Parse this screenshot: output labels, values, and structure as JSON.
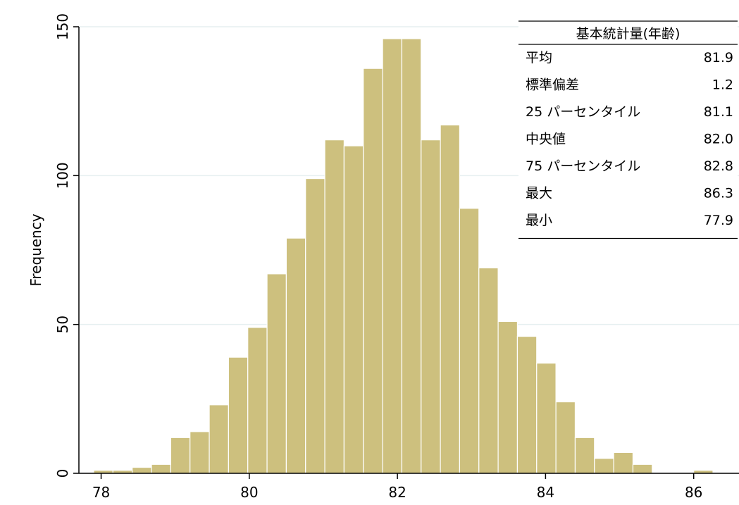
{
  "chart_data": {
    "type": "bar",
    "title": "",
    "xlabel": "",
    "ylabel": "Frequency",
    "xlim": [
      77.7,
      86.45
    ],
    "ylim": [
      0,
      150
    ],
    "xticks": [
      78,
      80,
      82,
      84,
      86
    ],
    "yticks": [
      0,
      50,
      100,
      150
    ],
    "grid": true,
    "bin_width": 0.26,
    "bins": [
      {
        "x0": 77.9,
        "x1": 78.16,
        "value": 1
      },
      {
        "x0": 78.16,
        "x1": 78.42,
        "value": 1
      },
      {
        "x0": 78.42,
        "x1": 78.68,
        "value": 2
      },
      {
        "x0": 78.68,
        "x1": 78.94,
        "value": 3
      },
      {
        "x0": 78.94,
        "x1": 79.2,
        "value": 12
      },
      {
        "x0": 79.2,
        "x1": 79.46,
        "value": 14
      },
      {
        "x0": 79.46,
        "x1": 79.72,
        "value": 23
      },
      {
        "x0": 79.72,
        "x1": 79.98,
        "value": 39
      },
      {
        "x0": 79.98,
        "x1": 80.24,
        "value": 49
      },
      {
        "x0": 80.24,
        "x1": 80.5,
        "value": 67
      },
      {
        "x0": 80.5,
        "x1": 80.76,
        "value": 79
      },
      {
        "x0": 80.76,
        "x1": 81.02,
        "value": 99
      },
      {
        "x0": 81.02,
        "x1": 81.28,
        "value": 112
      },
      {
        "x0": 81.28,
        "x1": 81.54,
        "value": 110
      },
      {
        "x0": 81.54,
        "x1": 81.8,
        "value": 136
      },
      {
        "x0": 81.8,
        "x1": 82.06,
        "value": 146
      },
      {
        "x0": 82.06,
        "x1": 82.32,
        "value": 146
      },
      {
        "x0": 82.32,
        "x1": 82.58,
        "value": 112
      },
      {
        "x0": 82.58,
        "x1": 82.84,
        "value": 117
      },
      {
        "x0": 82.84,
        "x1": 83.1,
        "value": 89
      },
      {
        "x0": 83.1,
        "x1": 83.36,
        "value": 69
      },
      {
        "x0": 83.36,
        "x1": 83.62,
        "value": 51
      },
      {
        "x0": 83.62,
        "x1": 83.88,
        "value": 46
      },
      {
        "x0": 83.88,
        "x1": 84.14,
        "value": 37
      },
      {
        "x0": 84.14,
        "x1": 84.4,
        "value": 24
      },
      {
        "x0": 84.4,
        "x1": 84.66,
        "value": 12
      },
      {
        "x0": 84.66,
        "x1": 84.92,
        "value": 5
      },
      {
        "x0": 84.92,
        "x1": 85.18,
        "value": 7
      },
      {
        "x0": 85.18,
        "x1": 85.44,
        "value": 3
      },
      {
        "x0": 86.0,
        "x1": 86.26,
        "value": 1
      }
    ],
    "colors": {
      "bar_fill": "#cdc07e",
      "bar_stroke": "#ffffff",
      "grid": "#e6eff0",
      "axis": "#000000"
    },
    "stats_table": {
      "title": "基本統計量(年齢)",
      "rows": [
        {
          "label": "平均",
          "value": "81.9"
        },
        {
          "label": "標準偏差",
          "value": "1.2"
        },
        {
          "label": "25 パーセンタイル",
          "value": "81.1"
        },
        {
          "label": "中央値",
          "value": "82.0"
        },
        {
          "label": "75 パーセンタイル",
          "value": "82.8"
        },
        {
          "label": "最大",
          "value": "86.3"
        },
        {
          "label": "最小",
          "value": "77.9"
        }
      ]
    }
  }
}
